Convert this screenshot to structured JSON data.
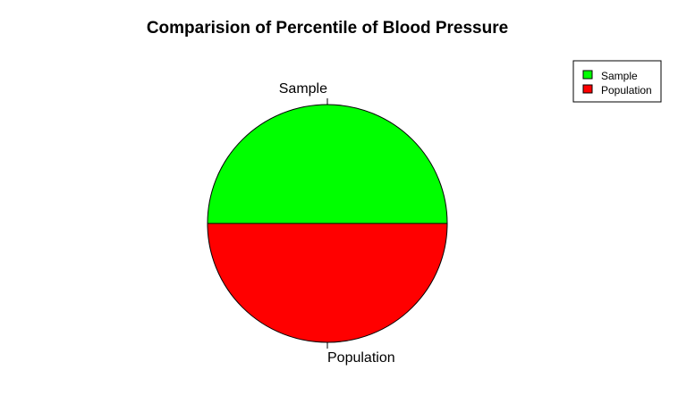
{
  "chart_data": {
    "type": "pie",
    "title": "Comparision of Percentile of Blood Pressure",
    "categories": [
      "Sample",
      "Population"
    ],
    "values": [
      50,
      50
    ],
    "colors": [
      "#00ff00",
      "#ff0000"
    ],
    "legend": {
      "placement": "top-right",
      "entries": [
        "Sample",
        "Population"
      ]
    }
  }
}
